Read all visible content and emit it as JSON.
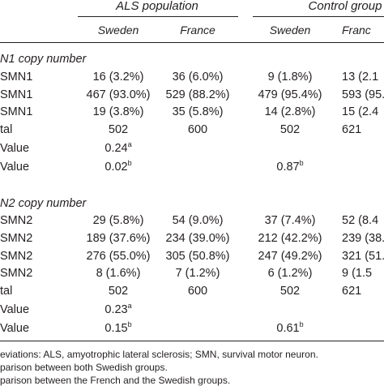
{
  "headers": {
    "als_population": "ALS population",
    "control_group": "Control group",
    "columns": [
      "Sweden",
      "France",
      "Sweden",
      "Franc"
    ]
  },
  "sections": [
    {
      "title": "N1 copy number",
      "rows": [
        {
          "label": "SMN1",
          "values": [
            "16 (3.2%)",
            "36 (6.0%)",
            "9 (1.8%)",
            "13 (2.1"
          ]
        },
        {
          "label": "SMN1",
          "values": [
            "467 (93.0%)",
            "529 (88.2%)",
            "479 (95.4%)",
            "593 (95."
          ]
        },
        {
          "label": "SMN1",
          "values": [
            "19 (3.8%)",
            "35 (5.8%)",
            "14 (2.8%)",
            "15 (2.4"
          ]
        },
        {
          "label": "tal",
          "values": [
            "502",
            "600",
            "502",
            "621"
          ]
        }
      ],
      "pvalue_rows": [
        {
          "label": "Value",
          "value": "0.24",
          "sup": "a",
          "col": "c1"
        },
        {
          "label": "Value",
          "value": "0.02",
          "sup": "b",
          "col": "c1",
          "value2": "0.87",
          "sup2": "b"
        }
      ]
    },
    {
      "title": "N2 copy number",
      "rows": [
        {
          "label": "SMN2",
          "values": [
            "29 (5.8%)",
            "54 (9.0%)",
            "37 (7.4%)",
            "52 (8.4"
          ]
        },
        {
          "label": "SMN2",
          "values": [
            "189 (37.6%)",
            "234 (39.0%)",
            "212 (42.2%)",
            "239 (38."
          ]
        },
        {
          "label": "SMN2",
          "values": [
            "276 (55.0%)",
            "305 (50.8%)",
            "247 (49.2%)",
            "321 (51."
          ]
        },
        {
          "label": "SMN2",
          "values": [
            "8 (1.6%)",
            "7 (1.2%)",
            "6 (1.2%)",
            "9 (1.5"
          ]
        },
        {
          "label": "tal",
          "values": [
            "502",
            "600",
            "502",
            "621"
          ]
        }
      ],
      "pvalue_rows": [
        {
          "label": "Value",
          "value": "0.23",
          "sup": "a"
        },
        {
          "label": "Value",
          "value": "0.15",
          "sup": "b",
          "value2": "0.61",
          "sup2": "b"
        }
      ]
    }
  ],
  "footnotes": [
    "eviations: ALS, amyotrophic lateral sclerosis; SMN, survival motor neuron.",
    "parison between both Swedish groups.",
    "parison between the French and the Swedish groups."
  ]
}
